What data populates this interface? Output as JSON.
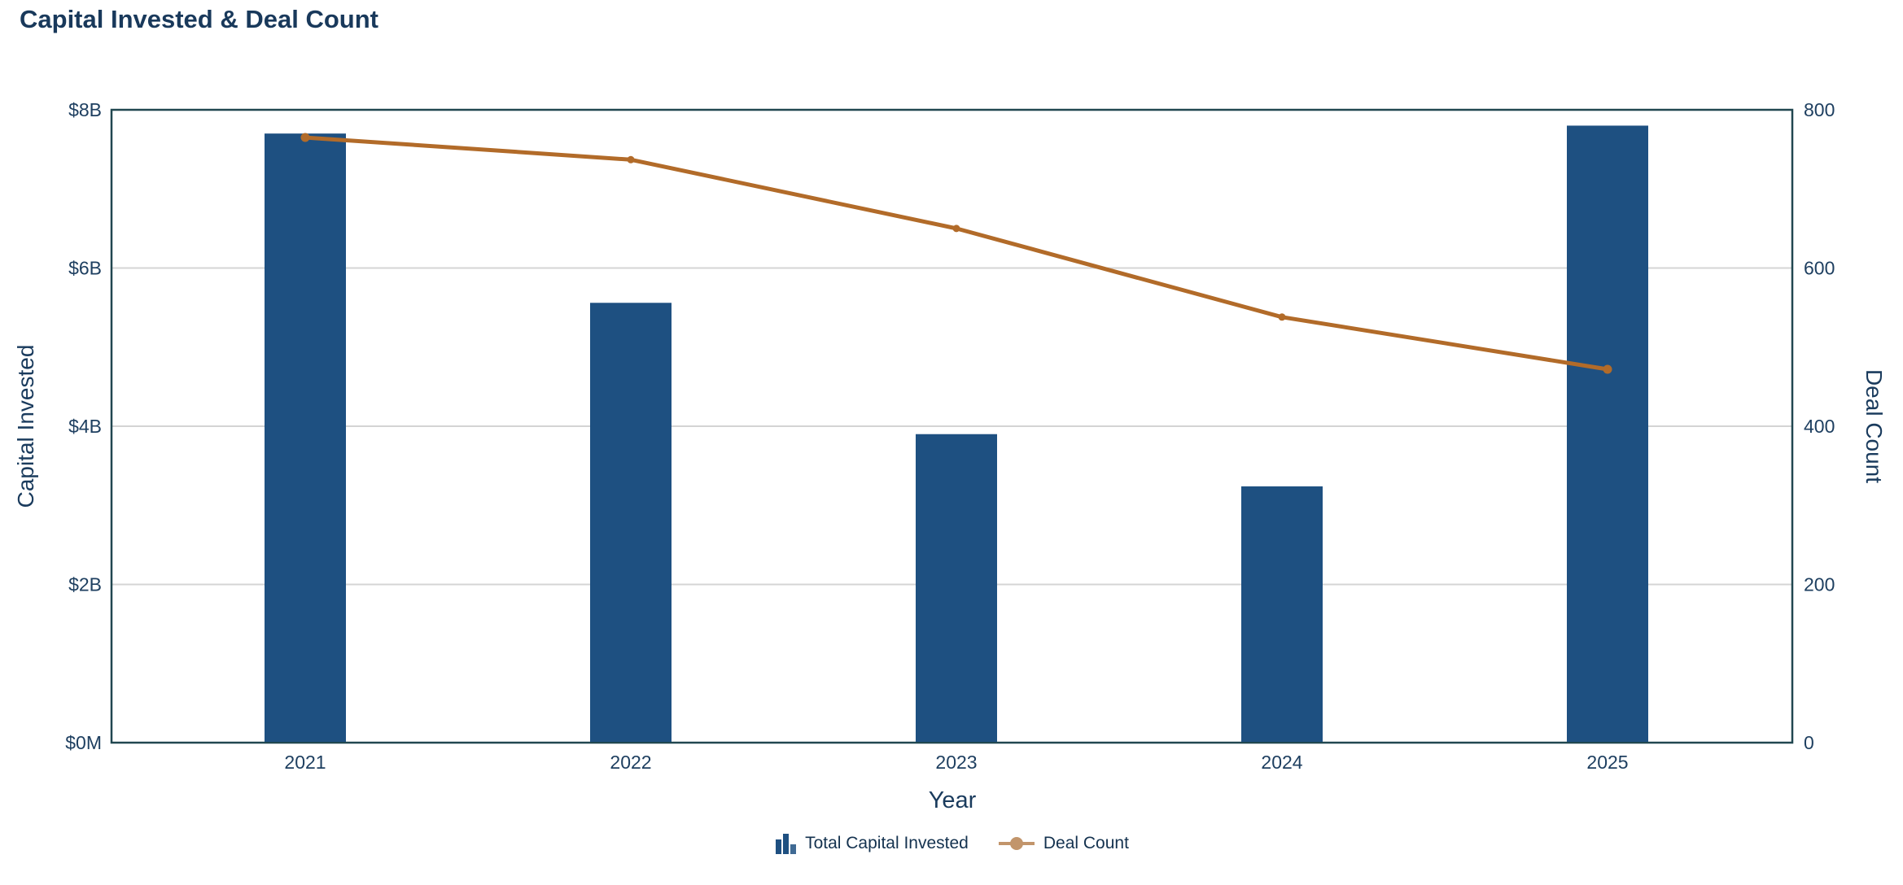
{
  "chart_data": {
    "type": "combo",
    "title": "Capital Invested & Deal Count",
    "xlabel": "Year",
    "categories": [
      "2021",
      "2022",
      "2023",
      "2024",
      "2025"
    ],
    "series": [
      {
        "name": "Total Capital Invested",
        "type": "bar",
        "axis": "left",
        "unit": "USD billions",
        "values": [
          7.7,
          5.56,
          3.9,
          3.24,
          7.8
        ]
      },
      {
        "name": "Deal Count",
        "type": "line",
        "axis": "right",
        "values": [
          765,
          737,
          650,
          538,
          472
        ]
      }
    ],
    "y_left": {
      "label": "Capital Invested",
      "min": 0,
      "max": 8,
      "ticks": [
        "$0M",
        "$2B",
        "$4B",
        "$6B",
        "$8B"
      ]
    },
    "y_right": {
      "label": "Deal Count",
      "min": 0,
      "max": 800,
      "ticks": [
        "0",
        "200",
        "400",
        "600",
        "800"
      ]
    },
    "grid": "horizontal",
    "legend_position": "bottom",
    "colors": {
      "bar": "#1E5081",
      "line": "#B26B29",
      "legend_line": "#C2956B",
      "axis_border": "#214750",
      "gridline": "#D4D4D4",
      "tick_text": "#1E3F60"
    }
  }
}
